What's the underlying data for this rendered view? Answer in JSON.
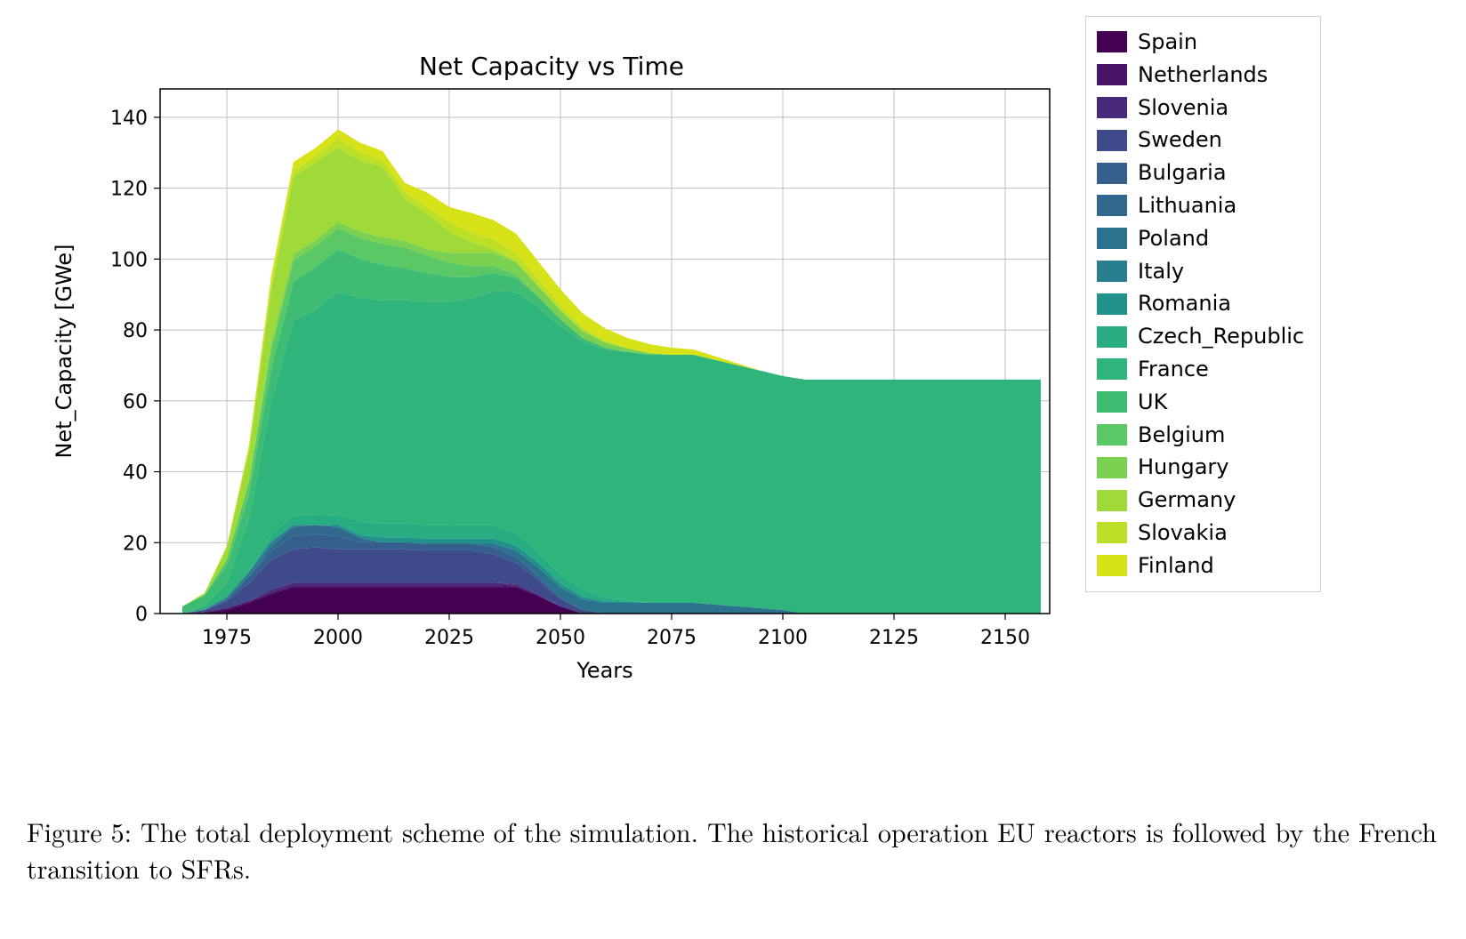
{
  "chart": {
    "type": "stacked-area",
    "title": "Net Capacity vs Time",
    "title_fontsize": 28,
    "xlabel": "Years",
    "ylabel": "Net_Capacity [GWe]",
    "label_fontsize": 24,
    "tick_fontsize": 22,
    "background_color": "#ffffff",
    "grid_color": "#bfbfbf",
    "axis_color": "#000000",
    "xlim": [
      1960,
      2160
    ],
    "ylim": [
      0,
      148
    ],
    "xticks": [
      1975,
      2000,
      2025,
      2050,
      2075,
      2100,
      2125,
      2150
    ],
    "yticks": [
      0,
      20,
      40,
      60,
      80,
      100,
      120,
      140
    ],
    "years": [
      1965,
      1970,
      1975,
      1980,
      1985,
      1990,
      1995,
      2000,
      2005,
      2010,
      2015,
      2020,
      2025,
      2030,
      2035,
      2040,
      2045,
      2050,
      2055,
      2060,
      2065,
      2070,
      2075,
      2080,
      2085,
      2090,
      2095,
      2100,
      2105,
      2110,
      2115,
      2120,
      2125,
      2130,
      2135,
      2140,
      2145,
      2150,
      2155,
      2158
    ],
    "series": [
      {
        "label": "Spain",
        "color": "#440154",
        "v": [
          0,
          0.3,
          1.0,
          3.0,
          5.5,
          7.5,
          7.5,
          7.5,
          7.5,
          7.5,
          7.5,
          7.5,
          7.5,
          7.5,
          7.5,
          7.5,
          5.0,
          2.0,
          0,
          0,
          0,
          0,
          0,
          0,
          0,
          0,
          0,
          0,
          0,
          0,
          0,
          0,
          0,
          0,
          0,
          0,
          0,
          0,
          0,
          0
        ]
      },
      {
        "label": "Netherlands",
        "color": "#481467",
        "v": [
          0,
          0.2,
          0.5,
          0.5,
          0.5,
          0.5,
          0.5,
          0.5,
          0.5,
          0.5,
          0.5,
          0.5,
          0.5,
          0.5,
          0.5,
          0.3,
          0.2,
          0,
          0,
          0,
          0,
          0,
          0,
          0,
          0,
          0,
          0,
          0,
          0,
          0,
          0,
          0,
          0,
          0,
          0,
          0,
          0,
          0,
          0,
          0
        ]
      },
      {
        "label": "Slovenia",
        "color": "#482878",
        "v": [
          0,
          0,
          0,
          0,
          0.7,
          0.7,
          0.7,
          0.7,
          0.7,
          0.7,
          0.7,
          0.7,
          0.7,
          0.7,
          0.7,
          0.5,
          0.3,
          0,
          0,
          0,
          0,
          0,
          0,
          0,
          0,
          0,
          0,
          0,
          0,
          0,
          0,
          0,
          0,
          0,
          0,
          0,
          0,
          0,
          0,
          0
        ]
      },
      {
        "label": "Sweden",
        "color": "#3e4a89",
        "v": [
          0,
          0.5,
          2.0,
          5.0,
          8.5,
          9.5,
          10.0,
          9.4,
          9.4,
          9.4,
          9.4,
          9.0,
          9.0,
          9.0,
          8.0,
          6.0,
          4.0,
          2.0,
          1.0,
          0,
          0,
          0,
          0,
          0,
          0,
          0,
          0,
          0,
          0,
          0,
          0,
          0,
          0,
          0,
          0,
          0,
          0,
          0,
          0,
          0
        ]
      },
      {
        "label": "Bulgaria",
        "color": "#355f8d",
        "v": [
          0,
          0,
          0.5,
          2.0,
          2.5,
          3.7,
          3.7,
          3.7,
          2.0,
          2.0,
          2.0,
          2.0,
          2.0,
          2.0,
          2.0,
          1.5,
          1.0,
          0.5,
          0,
          0,
          0,
          0,
          0,
          0,
          0,
          0,
          0,
          0,
          0,
          0,
          0,
          0,
          0,
          0,
          0,
          0,
          0,
          0,
          0,
          0
        ]
      },
      {
        "label": "Lithuania",
        "color": "#31688e",
        "v": [
          0,
          0,
          0,
          0,
          1.3,
          2.6,
          2.6,
          2.6,
          1.3,
          0,
          0,
          0,
          0,
          0,
          0,
          0,
          0,
          0,
          0,
          0,
          0,
          0,
          0,
          0,
          0,
          0,
          0,
          0,
          0,
          0,
          0,
          0,
          0,
          0,
          0,
          0,
          0,
          0,
          0,
          0
        ]
      },
      {
        "label": "Poland",
        "color": "#2c728e",
        "v": [
          0,
          0,
          0,
          0,
          0,
          0,
          0,
          0,
          0,
          0,
          0,
          0,
          0,
          0,
          1.0,
          2.0,
          2.5,
          3.0,
          3.0,
          3.0,
          3.0,
          3.0,
          3.0,
          3.0,
          2.5,
          2.0,
          1.5,
          1.0,
          0,
          0,
          0,
          0,
          0,
          0,
          0,
          0,
          0,
          0,
          0,
          0
        ]
      },
      {
        "label": "Italy",
        "color": "#287d8e",
        "v": [
          0,
          0.2,
          0.6,
          1.3,
          1.3,
          0.5,
          0,
          0,
          0,
          0,
          0,
          0,
          0,
          0,
          0,
          0,
          0,
          0,
          0,
          0,
          0,
          0,
          0,
          0,
          0,
          0,
          0,
          0,
          0,
          0,
          0,
          0,
          0,
          0,
          0,
          0,
          0,
          0,
          0,
          0
        ]
      },
      {
        "label": "Romania",
        "color": "#21918c",
        "v": [
          0,
          0,
          0,
          0,
          0,
          0,
          0,
          0.7,
          0.7,
          1.4,
          1.4,
          1.4,
          1.4,
          1.4,
          1.4,
          1.4,
          1.4,
          1.0,
          0.7,
          0.5,
          0.3,
          0,
          0,
          0,
          0,
          0,
          0,
          0,
          0,
          0,
          0,
          0,
          0,
          0,
          0,
          0,
          0,
          0,
          0,
          0
        ]
      },
      {
        "label": "Czech_Republic",
        "color": "#27ad81",
        "v": [
          0,
          0,
          0,
          0,
          1.8,
          2.7,
          2.7,
          2.7,
          3.9,
          3.9,
          3.9,
          3.9,
          3.9,
          3.9,
          3.9,
          3.5,
          3.0,
          2.5,
          2.0,
          1.0,
          0.5,
          0,
          0,
          0,
          0,
          0,
          0,
          0,
          0,
          0,
          0,
          0,
          0,
          0,
          0,
          0,
          0,
          0,
          0,
          0
        ]
      },
      {
        "label": "France",
        "color": "#2fb47c",
        "v": [
          0,
          1.0,
          4.0,
          15.0,
          38.0,
          55.0,
          58.0,
          63.0,
          63.0,
          63.0,
          63.0,
          63.0,
          63.0,
          64.0,
          66.0,
          68.0,
          69.0,
          70.0,
          70.0,
          70.0,
          70.0,
          70.0,
          70.0,
          70.0,
          69.0,
          68.0,
          67.0,
          66.0,
          66.0,
          66.0,
          66.0,
          66.0,
          66.0,
          66.0,
          66.0,
          66.0,
          66.0,
          66.0,
          66.0,
          66.0
        ]
      },
      {
        "label": "UK",
        "color": "#3fbc73",
        "v": [
          2.0,
          3.0,
          5.0,
          7.0,
          9.0,
          11.0,
          12.0,
          12.0,
          11.0,
          10.0,
          9.0,
          8.0,
          7.0,
          6.0,
          5.0,
          4.0,
          3.0,
          2.0,
          1.0,
          0.5,
          0,
          0,
          0,
          0,
          0,
          0,
          0,
          0,
          0,
          0,
          0,
          0,
          0,
          0,
          0,
          0,
          0,
          0,
          0,
          0
        ]
      },
      {
        "label": "Belgium",
        "color": "#5ac864",
        "v": [
          0,
          0,
          1.7,
          3.5,
          5.5,
          5.9,
          5.9,
          5.9,
          5.9,
          5.9,
          5.9,
          5.0,
          4.0,
          3.0,
          2.0,
          1.0,
          0,
          0,
          0,
          0,
          0,
          0,
          0,
          0,
          0,
          0,
          0,
          0,
          0,
          0,
          0,
          0,
          0,
          0,
          0,
          0,
          0,
          0,
          0,
          0
        ]
      },
      {
        "label": "Hungary",
        "color": "#7ad151",
        "v": [
          0,
          0,
          0,
          0,
          1.8,
          1.8,
          1.8,
          1.8,
          1.8,
          1.8,
          1.8,
          1.8,
          2.8,
          3.8,
          3.8,
          3.5,
          3.0,
          2.5,
          2.0,
          1.5,
          1.0,
          0.5,
          0,
          0,
          0,
          0,
          0,
          0,
          0,
          0,
          0,
          0,
          0,
          0,
          0,
          0,
          0,
          0,
          0,
          0
        ]
      },
      {
        "label": "Germany",
        "color": "#a0da39",
        "v": [
          0,
          0.6,
          3.3,
          8.5,
          15.0,
          22.0,
          22.0,
          21.0,
          20.0,
          20.0,
          12.0,
          10.0,
          6.0,
          3.0,
          1.0,
          0,
          0,
          0,
          0,
          0,
          0,
          0,
          0,
          0,
          0,
          0,
          0,
          0,
          0,
          0,
          0,
          0,
          0,
          0,
          0,
          0,
          0,
          0,
          0,
          0
        ]
      },
      {
        "label": "Slovakia",
        "color": "#bddf26",
        "v": [
          0,
          0,
          0.5,
          0.9,
          1.7,
          1.7,
          1.7,
          2.5,
          2.5,
          1.8,
          1.8,
          1.8,
          2.7,
          2.7,
          2.7,
          2.5,
          2.0,
          1.5,
          1.0,
          0.5,
          0,
          0,
          0,
          0,
          0,
          0,
          0,
          0,
          0,
          0,
          0,
          0,
          0,
          0,
          0,
          0,
          0,
          0,
          0,
          0
        ]
      },
      {
        "label": "Finland",
        "color": "#d8e219",
        "v": [
          0,
          0,
          0,
          1.0,
          2.3,
          2.3,
          2.3,
          2.6,
          2.6,
          2.6,
          2.6,
          4.2,
          4.2,
          5.5,
          5.5,
          5.5,
          5.0,
          4.5,
          4.0,
          3.5,
          3.0,
          2.5,
          2.0,
          1.5,
          1.0,
          0.5,
          0,
          0,
          0,
          0,
          0,
          0,
          0,
          0,
          0,
          0,
          0,
          0,
          0,
          0
        ]
      }
    ],
    "legend_border_color": "#d0d0d0"
  },
  "caption": "Figure 5: The total deployment scheme of the simulation. The historical operation EU reactors is followed by the French transition to SFRs."
}
